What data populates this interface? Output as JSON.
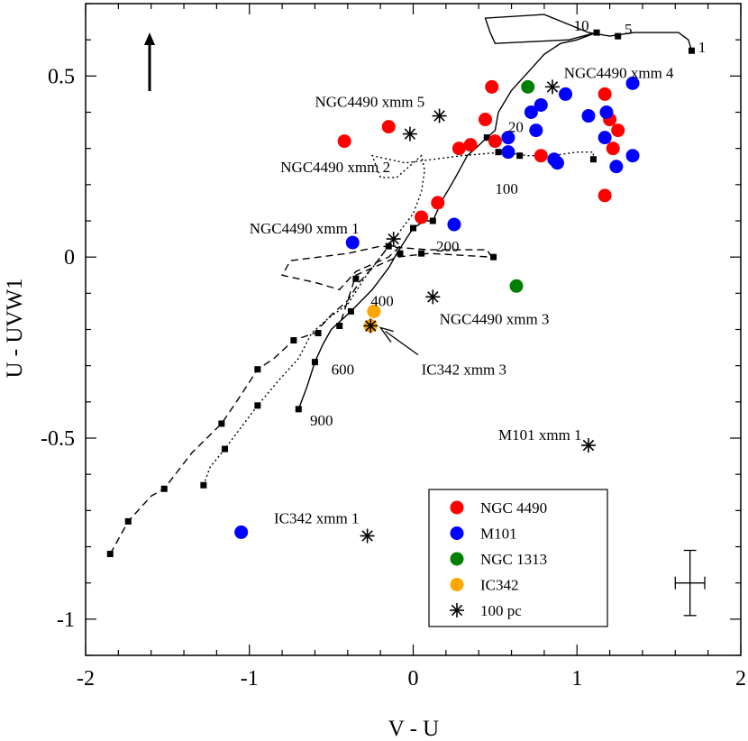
{
  "chart_data": {
    "type": "scatter",
    "title": "",
    "xlabel": "V - U",
    "ylabel": "U - UVW1",
    "xlim": [
      -2,
      2
    ],
    "ylim": [
      -1.1,
      0.7
    ],
    "xticks": [
      -2,
      -1,
      0,
      1,
      2
    ],
    "yticks": [
      -1,
      -0.5,
      0,
      0.5
    ],
    "xtick_labels": [
      "-2",
      "-1",
      "0",
      "1",
      "2"
    ],
    "ytick_labels": [
      "-1",
      "-0.5",
      "0",
      "0.5"
    ],
    "grid": false,
    "legend_position": "bottom-right",
    "series": [
      {
        "name": "NGC 4490",
        "marker": "circle",
        "color": "#ff0000",
        "points": [
          [
            0.48,
            0.47
          ],
          [
            0.44,
            0.38
          ],
          [
            0.5,
            0.32
          ],
          [
            0.35,
            0.31
          ],
          [
            0.28,
            0.3
          ],
          [
            0.15,
            0.15
          ],
          [
            0.05,
            0.11
          ],
          [
            -0.15,
            0.36
          ],
          [
            -0.42,
            0.32
          ],
          [
            0.78,
            0.28
          ],
          [
            1.17,
            0.45
          ],
          [
            1.2,
            0.38
          ],
          [
            1.25,
            0.35
          ],
          [
            1.22,
            0.3
          ],
          [
            1.17,
            0.17
          ]
        ]
      },
      {
        "name": "M101",
        "marker": "circle",
        "color": "#0000ff",
        "points": [
          [
            0.93,
            0.45
          ],
          [
            0.78,
            0.42
          ],
          [
            0.72,
            0.4
          ],
          [
            0.75,
            0.35
          ],
          [
            0.58,
            0.33
          ],
          [
            0.58,
            0.29
          ],
          [
            0.86,
            0.27
          ],
          [
            0.88,
            0.26
          ],
          [
            1.07,
            0.39
          ],
          [
            1.18,
            0.4
          ],
          [
            1.17,
            0.33
          ],
          [
            1.24,
            0.25
          ],
          [
            1.34,
            0.28
          ],
          [
            1.34,
            0.48
          ],
          [
            0.25,
            0.09
          ],
          [
            -0.37,
            0.04
          ],
          [
            -1.05,
            -0.76
          ]
        ]
      },
      {
        "name": "NGC 1313",
        "marker": "circle",
        "color": "#008000",
        "points": [
          [
            0.7,
            0.47
          ],
          [
            0.63,
            -0.08
          ]
        ]
      },
      {
        "name": "IC342",
        "marker": "circle",
        "color": "#ffa500",
        "points": [
          [
            -0.24,
            -0.15
          ],
          [
            -0.26,
            -0.19
          ]
        ]
      },
      {
        "name": "100 pc",
        "marker": "asterisk",
        "color": "#000000",
        "points": [
          [
            0.85,
            0.47
          ],
          [
            0.16,
            0.39
          ],
          [
            -0.02,
            0.34
          ],
          [
            0.12,
            -0.11
          ],
          [
            -0.26,
            -0.19
          ],
          [
            1.07,
            -0.52
          ],
          [
            -0.28,
            -0.77
          ],
          [
            -0.12,
            0.05
          ]
        ]
      }
    ],
    "model_tracks": [
      {
        "style": "solid",
        "points": [
          [
            -0.7,
            -0.42
          ],
          [
            -0.65,
            -0.36
          ],
          [
            -0.6,
            -0.29
          ],
          [
            -0.55,
            -0.24
          ],
          [
            -0.5,
            -0.2
          ],
          [
            -0.38,
            -0.15
          ],
          [
            -0.25,
            -0.09
          ],
          [
            -0.15,
            -0.03
          ],
          [
            -0.1,
            0.01
          ],
          [
            0.0,
            0.08
          ],
          [
            0.07,
            0.1
          ],
          [
            0.12,
            0.1
          ],
          [
            0.18,
            0.16
          ],
          [
            0.22,
            0.19
          ],
          [
            0.27,
            0.23
          ],
          [
            0.33,
            0.28
          ],
          [
            0.38,
            0.3
          ],
          [
            0.45,
            0.33
          ],
          [
            0.5,
            0.35
          ],
          [
            0.52,
            0.4
          ],
          [
            0.6,
            0.46
          ],
          [
            0.72,
            0.52
          ],
          [
            0.8,
            0.56
          ],
          [
            0.9,
            0.59
          ],
          [
            1.0,
            0.6
          ],
          [
            1.12,
            0.62
          ],
          [
            0.95,
            0.6
          ],
          [
            0.5,
            0.59
          ],
          [
            0.47,
            0.62
          ],
          [
            0.44,
            0.66
          ],
          [
            0.8,
            0.67
          ],
          [
            1.07,
            0.62
          ],
          [
            1.2,
            0.61
          ],
          [
            1.35,
            0.62
          ],
          [
            1.5,
            0.62
          ],
          [
            1.62,
            0.62
          ],
          [
            1.68,
            0.6
          ],
          [
            1.7,
            0.57
          ]
        ]
      },
      {
        "style": "dotted",
        "points": [
          [
            -1.28,
            -0.63
          ],
          [
            -1.24,
            -0.58
          ],
          [
            -1.15,
            -0.53
          ],
          [
            -1.05,
            -0.47
          ],
          [
            -0.95,
            -0.41
          ],
          [
            -0.82,
            -0.34
          ],
          [
            -0.7,
            -0.28
          ],
          [
            -0.62,
            -0.21
          ],
          [
            -0.52,
            -0.17
          ],
          [
            -0.4,
            -0.13
          ],
          [
            -0.3,
            -0.06
          ],
          [
            -0.2,
            0.0
          ],
          [
            -0.1,
            0.06
          ],
          [
            0.0,
            0.12
          ],
          [
            0.05,
            0.18
          ],
          [
            0.07,
            0.24
          ],
          [
            0.05,
            0.28
          ],
          [
            -0.1,
            0.22
          ],
          [
            -0.2,
            0.22
          ],
          [
            -0.25,
            0.28
          ],
          [
            -0.05,
            0.26
          ],
          [
            0.3,
            0.28
          ],
          [
            0.55,
            0.29
          ],
          [
            0.7,
            0.28
          ],
          [
            0.85,
            0.28
          ],
          [
            1.0,
            0.29
          ],
          [
            1.1,
            0.29
          ],
          [
            1.1,
            0.27
          ]
        ]
      },
      {
        "style": "dashed",
        "points": [
          [
            -1.85,
            -0.82
          ],
          [
            -1.74,
            -0.73
          ],
          [
            -1.6,
            -0.66
          ],
          [
            -1.52,
            -0.64
          ],
          [
            -1.35,
            -0.54
          ],
          [
            -1.17,
            -0.46
          ],
          [
            -1.05,
            -0.38
          ],
          [
            -0.95,
            -0.31
          ],
          [
            -0.85,
            -0.28
          ],
          [
            -0.73,
            -0.23
          ],
          [
            -0.6,
            -0.21
          ],
          [
            -0.5,
            -0.16
          ],
          [
            -0.4,
            -0.12
          ],
          [
            -0.33,
            -0.07
          ],
          [
            -0.25,
            -0.03
          ],
          [
            -0.15,
            0.03
          ],
          [
            -0.08,
            0.03
          ],
          [
            -0.15,
            0.0
          ],
          [
            -0.35,
            -0.04
          ],
          [
            -0.45,
            -0.09
          ],
          [
            -0.6,
            -0.07
          ],
          [
            -0.8,
            -0.05
          ],
          [
            -0.75,
            -0.01
          ],
          [
            -0.4,
            0.01
          ],
          [
            -0.2,
            0.03
          ],
          [
            0.1,
            0.02
          ],
          [
            0.3,
            0.02
          ],
          [
            0.45,
            0.02
          ],
          [
            0.48,
            0.0
          ],
          [
            0.1,
            0.01
          ],
          [
            -0.1,
            0.0
          ],
          [
            -0.35,
            -0.05
          ],
          [
            -0.45,
            -0.19
          ]
        ]
      }
    ],
    "age_markers": [
      [
        1.7,
        0.57
      ],
      [
        1.25,
        0.61
      ],
      [
        1.12,
        0.62
      ],
      [
        0.45,
        0.33
      ],
      [
        0.52,
        0.29
      ],
      [
        0.65,
        0.28
      ],
      [
        1.1,
        0.27
      ],
      [
        0.12,
        0.1
      ],
      [
        0.0,
        0.08
      ],
      [
        -0.15,
        0.03
      ],
      [
        -0.08,
        0.01
      ],
      [
        0.05,
        0.01
      ],
      [
        0.49,
        0.0
      ],
      [
        -0.35,
        -0.06
      ],
      [
        -0.38,
        -0.15
      ],
      [
        -0.58,
        -0.21
      ],
      [
        -0.45,
        -0.19
      ],
      [
        -0.6,
        -0.29
      ],
      [
        -0.7,
        -0.42
      ],
      [
        -0.95,
        -0.31
      ],
      [
        -0.73,
        -0.23
      ],
      [
        -0.95,
        -0.41
      ],
      [
        -1.17,
        -0.46
      ],
      [
        -1.15,
        -0.53
      ],
      [
        -1.28,
        -0.63
      ],
      [
        -1.52,
        -0.64
      ],
      [
        -1.74,
        -0.73
      ],
      [
        -1.85,
        -0.82
      ]
    ],
    "annotations": {
      "ages": [
        {
          "text": "1",
          "x": 1.74,
          "y": 0.58
        },
        {
          "text": "5",
          "x": 1.29,
          "y": 0.63
        },
        {
          "text": "10",
          "x": 0.98,
          "y": 0.64
        },
        {
          "text": "20",
          "x": 0.58,
          "y": 0.36
        },
        {
          "text": "100",
          "x": 0.5,
          "y": 0.19
        },
        {
          "text": "200",
          "x": 0.14,
          "y": 0.03
        },
        {
          "text": "400",
          "x": -0.26,
          "y": -0.12
        },
        {
          "text": "600",
          "x": -0.5,
          "y": -0.31
        },
        {
          "text": "900",
          "x": -0.63,
          "y": -0.45
        }
      ],
      "sources": [
        {
          "text": "NGC4490 xmm 4",
          "x": 0.92,
          "y": 0.51
        },
        {
          "text": "NGC4490 xmm 5",
          "x": -0.6,
          "y": 0.43
        },
        {
          "text": "NGC4490 xmm 2",
          "x": -0.81,
          "y": 0.25
        },
        {
          "text": "NGC4490 xmm 1",
          "x": -1.0,
          "y": 0.08
        },
        {
          "text": "NGC4490 xmm 3",
          "x": 0.16,
          "y": -0.17
        },
        {
          "text": "IC342 xmm 3",
          "x": 0.05,
          "y": -0.31
        },
        {
          "text": "M101 xmm 1",
          "x": 0.52,
          "y": -0.49
        },
        {
          "text": "IC342 xmm 1",
          "x": -0.85,
          "y": -0.72
        }
      ],
      "error_bar": {
        "x": 1.69,
        "y": -0.9,
        "dx": 0.09,
        "dy": 0.09
      }
    }
  }
}
